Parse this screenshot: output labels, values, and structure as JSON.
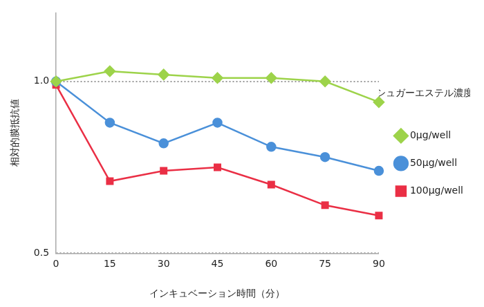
{
  "chart_data": {
    "type": "line",
    "x_label": "インキュベーション時間（分）",
    "y_label": "相対的膜抵抗値",
    "legend_title": "シュガーエステル濃度",
    "legend": "right",
    "grid": true,
    "x": [
      0,
      15,
      30,
      45,
      60,
      75,
      90
    ],
    "xlim": [
      0,
      90
    ],
    "xticks": [
      0,
      15,
      30,
      45,
      60,
      75,
      90
    ],
    "ylim": [
      0.5,
      1.2
    ],
    "yticks": [
      0.5,
      {
        "value": 1,
        "label": "1.0"
      }
    ],
    "series": [
      {
        "name": "0μg/well",
        "color": "#9dd34a",
        "marker": "diamond",
        "values": [
          1.0,
          1.03,
          1.02,
          1.01,
          1.01,
          1.0,
          0.94
        ]
      },
      {
        "name": "50μg/well",
        "color": "#4a90d9",
        "marker": "circle",
        "values": [
          1.0,
          0.88,
          0.82,
          0.88,
          0.81,
          0.78,
          0.74
        ]
      },
      {
        "name": "100μg/well",
        "color": "#ea2f45",
        "marker": "square",
        "values": [
          0.99,
          0.71,
          0.74,
          0.75,
          0.7,
          0.64,
          0.61
        ]
      }
    ]
  }
}
